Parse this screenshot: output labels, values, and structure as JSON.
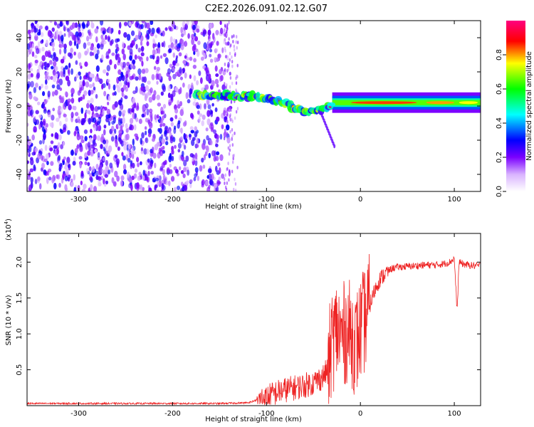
{
  "page_title": "C2E2.2026.091.02.12.G07",
  "chart_data": [
    {
      "type": "heatmap",
      "title": "C2E2.2026.091.02.12.G07",
      "xlabel": "Height of straight line (km)",
      "ylabel": "Frequency (Hz)",
      "xlim": [
        -355,
        128
      ],
      "ylim": [
        -50,
        50
      ],
      "x_ticks": [
        -300,
        -200,
        -100,
        0,
        100
      ],
      "x_tick_labels": [
        "-300",
        "-200",
        "-100",
        "0",
        "100"
      ],
      "y_ticks": [
        -40,
        -20,
        0,
        20,
        40
      ],
      "y_tick_labels": [
        "-40",
        "-20",
        "0",
        "20",
        "40"
      ],
      "colorbar": {
        "label": "Normalized spectral amplitude",
        "range": [
          0,
          1
        ],
        "ticks": [
          0.0,
          0.2,
          0.4,
          0.6,
          0.8
        ],
        "tick_labels": [
          "0.0",
          "0.2",
          "0.4",
          "0.6",
          "0.8"
        ],
        "colors": [
          "#ffffff",
          "#7b00ff",
          "#0000ff",
          "#00ffff",
          "#00ff00",
          "#ffff00",
          "#ff0000",
          "#ff0080"
        ]
      },
      "regions": [
        {
          "name": "noise",
          "x_range": [
            -355,
            -130
          ],
          "freq_range": [
            -50,
            50
          ],
          "amplitude": 0.1
        },
        {
          "name": "transition",
          "x_range": [
            -175,
            -30
          ],
          "center_freq": [
            [
              -175,
              7
            ],
            [
              -130,
              6
            ],
            [
              -100,
              5
            ],
            [
              -80,
              1
            ],
            [
              -60,
              -3
            ],
            [
              -40,
              -2
            ],
            [
              -30,
              2
            ]
          ],
          "amplitude": 0.5
        },
        {
          "name": "carrier",
          "x_range": [
            -30,
            128
          ],
          "center_freq": [
            [
              -30,
              2
            ],
            [
              0,
              2
            ],
            [
              50,
              2
            ],
            [
              100,
              2
            ],
            [
              128,
              2
            ]
          ],
          "amplitude": 0.9
        }
      ]
    },
    {
      "type": "line",
      "xlabel": "Height of straight line (km)",
      "ylabel": "SNR (10 * v/v)",
      "y_scale_label": "(x10",
      "y_scale_exponent": "4",
      "xlim": [
        -355,
        128
      ],
      "ylim": [
        0,
        2.4
      ],
      "x_ticks": [
        -300,
        -200,
        -100,
        0,
        100
      ],
      "x_tick_labels": [
        "-300",
        "-200",
        "-100",
        "0",
        "100"
      ],
      "y_ticks": [
        0.5,
        1.0,
        1.5,
        2.0
      ],
      "y_tick_labels": [
        "0.5",
        "1.0",
        "1.5",
        "2.0"
      ],
      "line_color": "#ee2222",
      "series": [
        {
          "name": "SNR",
          "x": [
            -355,
            -250,
            -150,
            -120,
            -100,
            -90,
            -80,
            -70,
            -60,
            -50,
            -40,
            -35,
            -30,
            -25,
            -20,
            -15,
            -10,
            -5,
            0,
            5,
            10,
            15,
            20,
            25,
            30,
            35,
            40,
            50,
            60,
            70,
            80,
            90,
            95,
            100,
            103,
            105,
            110,
            120,
            128
          ],
          "values": [
            0.03,
            0.03,
            0.03,
            0.04,
            0.12,
            0.18,
            0.22,
            0.25,
            0.28,
            0.32,
            0.4,
            0.5,
            0.9,
            1.05,
            0.95,
            1.05,
            1.0,
            0.85,
            1.05,
            1.2,
            1.4,
            1.6,
            1.75,
            1.82,
            1.88,
            1.92,
            1.93,
            1.94,
            1.95,
            1.96,
            1.96,
            1.98,
            2.0,
            2.05,
            1.3,
            2.0,
            1.97,
            1.95,
            1.95
          ]
        }
      ]
    }
  ]
}
